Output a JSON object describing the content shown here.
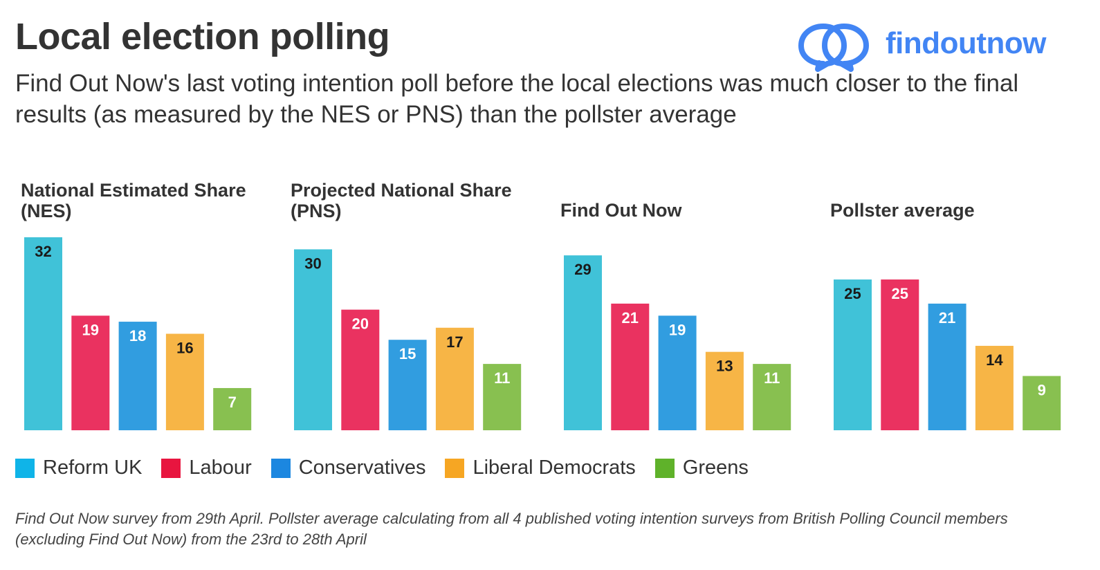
{
  "title": "Local election polling",
  "subtitle": "Find Out Now's last voting intention poll before the local elections was much closer to the final results (as measured by the NES or PNS) than the pollster average",
  "logo": {
    "text": "findoutnow",
    "color": "#4285f4"
  },
  "footnote": "Find Out Now survey from 29th April. Pollster average calculating from all 4 published voting intention surveys from British Polling Council members (excluding Find Out Now) from the 23rd to 28th April",
  "legend": [
    {
      "label": "Reform UK",
      "color": "#0fb4e8"
    },
    {
      "label": "Labour",
      "color": "#e8153f"
    },
    {
      "label": "Conservatives",
      "color": "#1c87e0"
    },
    {
      "label": "Liberal Democrats",
      "color": "#f6a623"
    },
    {
      "label": "Greens",
      "color": "#5fb22a"
    }
  ],
  "chart_data": [
    {
      "type": "bar",
      "title": "National Estimated Share (NES)",
      "categories": [
        "Reform UK",
        "Labour",
        "Conservatives",
        "Liberal Democrats",
        "Greens"
      ],
      "values": [
        32,
        19,
        18,
        16,
        7
      ],
      "colors": [
        "#40c2d8",
        "#ea3260",
        "#319de0",
        "#f7b546",
        "#88c050"
      ],
      "ylim": [
        0,
        32
      ]
    },
    {
      "type": "bar",
      "title": "Projected National Share (PNS)",
      "categories": [
        "Reform UK",
        "Labour",
        "Conservatives",
        "Liberal Democrats",
        "Greens"
      ],
      "values": [
        30,
        20,
        15,
        17,
        11
      ],
      "colors": [
        "#40c2d8",
        "#ea3260",
        "#319de0",
        "#f7b546",
        "#88c050"
      ],
      "ylim": [
        0,
        32
      ]
    },
    {
      "type": "bar",
      "title": "Find Out Now",
      "categories": [
        "Reform UK",
        "Labour",
        "Conservatives",
        "Liberal Democrats",
        "Greens"
      ],
      "values": [
        29,
        21,
        19,
        13,
        11
      ],
      "colors": [
        "#40c2d8",
        "#ea3260",
        "#319de0",
        "#f7b546",
        "#88c050"
      ],
      "ylim": [
        0,
        32
      ]
    },
    {
      "type": "bar",
      "title": "Pollster average",
      "categories": [
        "Reform UK",
        "Labour",
        "Conservatives",
        "Liberal Democrats",
        "Greens"
      ],
      "values": [
        25,
        25,
        21,
        14,
        9
      ],
      "colors": [
        "#40c2d8",
        "#ea3260",
        "#319de0",
        "#f7b546",
        "#88c050"
      ],
      "ylim": [
        0,
        32
      ]
    }
  ]
}
